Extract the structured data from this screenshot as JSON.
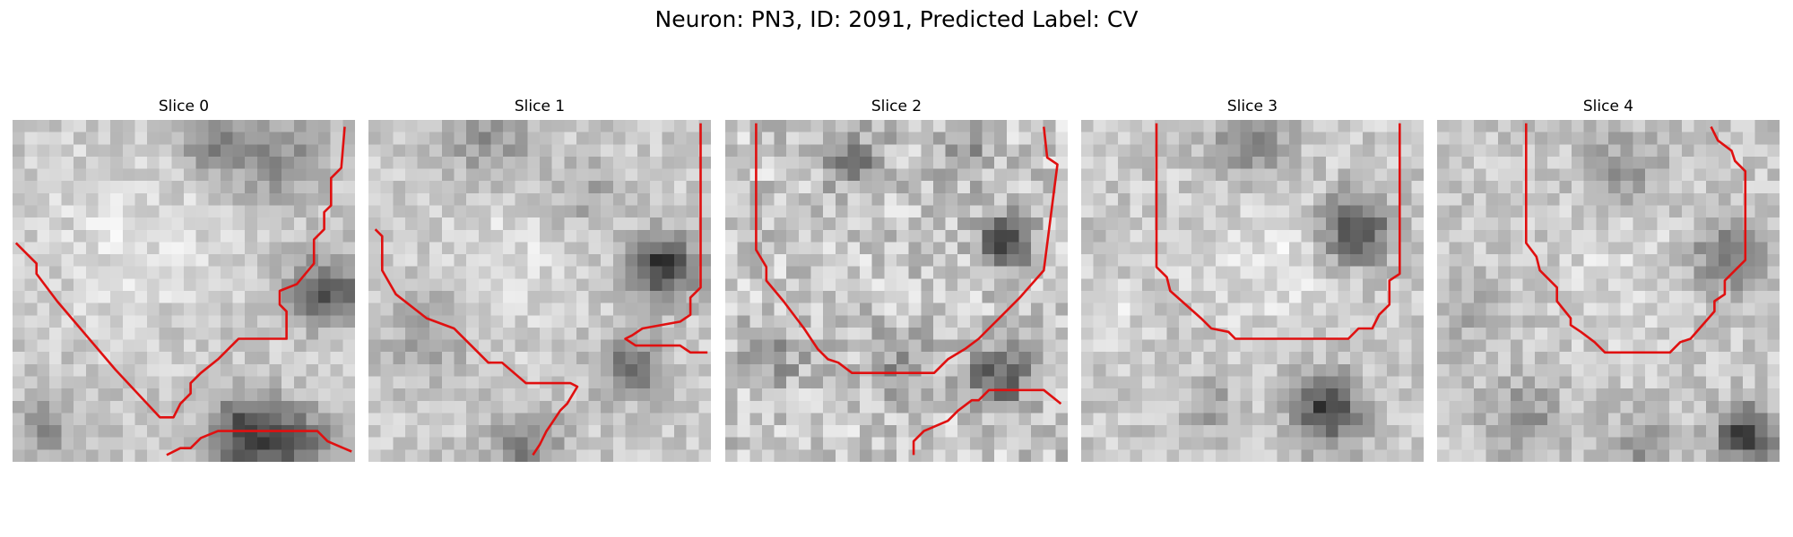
{
  "figure": {
    "title": "Neuron: PN3, ID: 2091, Predicted Label: CV"
  },
  "panels": [
    {
      "title": "Slice 0",
      "seed": 11,
      "noise": 26,
      "stroke_color": "#e01010",
      "field": [
        {
          "u": 0.58,
          "v": 0.07,
          "r": 0.1,
          "a": -70
        },
        {
          "u": 0.78,
          "v": 0.12,
          "r": 0.12,
          "a": -60
        },
        {
          "u": 0.92,
          "v": 0.5,
          "r": 0.1,
          "a": -110
        },
        {
          "u": 0.69,
          "v": 0.92,
          "r": 0.11,
          "a": -140
        },
        {
          "u": 0.85,
          "v": 0.94,
          "r": 0.09,
          "a": -90
        },
        {
          "u": 0.1,
          "v": 0.9,
          "r": 0.1,
          "a": -50
        },
        {
          "u": 0.35,
          "v": 0.35,
          "r": 0.25,
          "a": 25
        }
      ],
      "curves": [
        [
          [
            0.01,
            0.36
          ],
          [
            0.07,
            0.42
          ],
          [
            0.07,
            0.45
          ],
          [
            0.13,
            0.53
          ],
          [
            0.3,
            0.73
          ],
          [
            0.43,
            0.87
          ],
          [
            0.47,
            0.87
          ],
          [
            0.49,
            0.83
          ],
          [
            0.52,
            0.8
          ],
          [
            0.52,
            0.77
          ],
          [
            0.55,
            0.74
          ],
          [
            0.6,
            0.7
          ],
          [
            0.63,
            0.67
          ],
          [
            0.66,
            0.64
          ],
          [
            0.8,
            0.64
          ],
          [
            0.8,
            0.56
          ],
          [
            0.78,
            0.54
          ],
          [
            0.78,
            0.5
          ],
          [
            0.83,
            0.48
          ],
          [
            0.88,
            0.42
          ],
          [
            0.88,
            0.35
          ],
          [
            0.91,
            0.32
          ],
          [
            0.91,
            0.27
          ],
          [
            0.93,
            0.25
          ],
          [
            0.93,
            0.17
          ],
          [
            0.96,
            0.14
          ],
          [
            0.97,
            0.02
          ]
        ],
        [
          [
            0.45,
            0.98
          ],
          [
            0.49,
            0.96
          ],
          [
            0.52,
            0.96
          ],
          [
            0.55,
            0.93
          ],
          [
            0.6,
            0.91
          ],
          [
            0.89,
            0.91
          ],
          [
            0.92,
            0.94
          ],
          [
            0.99,
            0.97
          ]
        ]
      ]
    },
    {
      "title": "Slice 1",
      "seed": 23,
      "noise": 26,
      "stroke_color": "#e01010",
      "field": [
        {
          "u": 0.35,
          "v": 0.06,
          "r": 0.12,
          "a": -55
        },
        {
          "u": 0.62,
          "v": 0.22,
          "r": 0.1,
          "a": -40
        },
        {
          "u": 0.86,
          "v": 0.43,
          "r": 0.09,
          "a": -150
        },
        {
          "u": 0.76,
          "v": 0.72,
          "r": 0.09,
          "a": -90
        },
        {
          "u": 0.46,
          "v": 0.95,
          "r": 0.1,
          "a": -70
        },
        {
          "u": 0.18,
          "v": 0.62,
          "r": 0.12,
          "a": -45
        },
        {
          "u": 0.4,
          "v": 0.4,
          "r": 0.25,
          "a": 20
        }
      ],
      "curves": [
        [
          [
            0.02,
            0.32
          ],
          [
            0.04,
            0.34
          ],
          [
            0.04,
            0.44
          ],
          [
            0.08,
            0.51
          ],
          [
            0.17,
            0.58
          ],
          [
            0.25,
            0.61
          ],
          [
            0.3,
            0.66
          ],
          [
            0.35,
            0.71
          ],
          [
            0.39,
            0.71
          ],
          [
            0.46,
            0.77
          ],
          [
            0.59,
            0.77
          ],
          [
            0.61,
            0.78
          ],
          [
            0.58,
            0.83
          ],
          [
            0.56,
            0.85
          ],
          [
            0.54,
            0.88
          ],
          [
            0.52,
            0.91
          ],
          [
            0.5,
            0.95
          ],
          [
            0.48,
            0.98
          ]
        ],
        [
          [
            0.97,
            0.01
          ],
          [
            0.97,
            0.49
          ],
          [
            0.94,
            0.52
          ],
          [
            0.94,
            0.57
          ],
          [
            0.91,
            0.59
          ],
          [
            0.8,
            0.61
          ],
          [
            0.77,
            0.63
          ],
          [
            0.75,
            0.64
          ],
          [
            0.78,
            0.66
          ],
          [
            0.91,
            0.66
          ],
          [
            0.94,
            0.68
          ],
          [
            0.99,
            0.68
          ]
        ]
      ]
    },
    {
      "title": "Slice 2",
      "seed": 37,
      "noise": 40,
      "stroke_color": "#e01010",
      "field": [
        {
          "u": 0.38,
          "v": 0.12,
          "r": 0.09,
          "a": -70
        },
        {
          "u": 0.7,
          "v": 0.1,
          "r": 0.08,
          "a": -60
        },
        {
          "u": 0.82,
          "v": 0.35,
          "r": 0.08,
          "a": -140
        },
        {
          "u": 0.8,
          "v": 0.75,
          "r": 0.09,
          "a": -110
        },
        {
          "u": 0.5,
          "v": 0.72,
          "r": 0.1,
          "a": -50
        },
        {
          "u": 0.15,
          "v": 0.7,
          "r": 0.1,
          "a": -40
        }
      ],
      "curves": [
        [
          [
            0.09,
            0.01
          ],
          [
            0.09,
            0.38
          ],
          [
            0.12,
            0.43
          ],
          [
            0.12,
            0.47
          ],
          [
            0.17,
            0.53
          ],
          [
            0.23,
            0.61
          ],
          [
            0.27,
            0.67
          ],
          [
            0.3,
            0.7
          ],
          [
            0.33,
            0.71
          ],
          [
            0.37,
            0.74
          ],
          [
            0.61,
            0.74
          ],
          [
            0.65,
            0.7
          ],
          [
            0.7,
            0.67
          ],
          [
            0.74,
            0.64
          ],
          [
            0.77,
            0.61
          ],
          [
            0.8,
            0.58
          ],
          [
            0.86,
            0.52
          ],
          [
            0.93,
            0.44
          ],
          [
            0.97,
            0.13
          ],
          [
            0.94,
            0.11
          ],
          [
            0.93,
            0.02
          ]
        ],
        [
          [
            0.55,
            0.98
          ],
          [
            0.55,
            0.94
          ],
          [
            0.58,
            0.91
          ],
          [
            0.65,
            0.88
          ],
          [
            0.68,
            0.85
          ],
          [
            0.72,
            0.82
          ],
          [
            0.74,
            0.82
          ],
          [
            0.77,
            0.79
          ],
          [
            0.93,
            0.79
          ],
          [
            0.98,
            0.83
          ]
        ]
      ]
    },
    {
      "title": "Slice 3",
      "seed": 51,
      "noise": 28,
      "stroke_color": "#e01010",
      "field": [
        {
          "u": 0.5,
          "v": 0.07,
          "r": 0.12,
          "a": -60
        },
        {
          "u": 0.8,
          "v": 0.32,
          "r": 0.1,
          "a": -130
        },
        {
          "u": 0.72,
          "v": 0.85,
          "r": 0.1,
          "a": -140
        },
        {
          "u": 0.38,
          "v": 0.84,
          "r": 0.08,
          "a": -40
        },
        {
          "u": 0.1,
          "v": 0.55,
          "r": 0.1,
          "a": 20
        },
        {
          "u": 0.55,
          "v": 0.4,
          "r": 0.22,
          "a": 25
        }
      ],
      "curves": [
        [
          [
            0.22,
            0.01
          ],
          [
            0.22,
            0.43
          ],
          [
            0.25,
            0.46
          ],
          [
            0.26,
            0.5
          ],
          [
            0.35,
            0.58
          ],
          [
            0.38,
            0.61
          ],
          [
            0.43,
            0.62
          ],
          [
            0.45,
            0.64
          ],
          [
            0.78,
            0.64
          ],
          [
            0.81,
            0.61
          ],
          [
            0.85,
            0.61
          ],
          [
            0.87,
            0.57
          ],
          [
            0.9,
            0.54
          ],
          [
            0.9,
            0.47
          ],
          [
            0.93,
            0.45
          ],
          [
            0.93,
            0.01
          ]
        ]
      ]
    },
    {
      "title": "Slice 4",
      "seed": 67,
      "noise": 28,
      "stroke_color": "#e01010",
      "field": [
        {
          "u": 0.55,
          "v": 0.15,
          "r": 0.12,
          "a": -50
        },
        {
          "u": 0.85,
          "v": 0.4,
          "r": 0.1,
          "a": -90
        },
        {
          "u": 0.25,
          "v": 0.88,
          "r": 0.12,
          "a": -50
        },
        {
          "u": 0.6,
          "v": 0.95,
          "r": 0.1,
          "a": -50
        },
        {
          "u": 0.9,
          "v": 0.92,
          "r": 0.08,
          "a": -150
        },
        {
          "u": 0.12,
          "v": 0.58,
          "r": 0.1,
          "a": -30
        },
        {
          "u": 0.55,
          "v": 0.45,
          "r": 0.2,
          "a": 20
        }
      ],
      "curves": [
        [
          [
            0.26,
            0.01
          ],
          [
            0.26,
            0.36
          ],
          [
            0.29,
            0.4
          ],
          [
            0.3,
            0.44
          ],
          [
            0.35,
            0.49
          ],
          [
            0.35,
            0.53
          ],
          [
            0.39,
            0.58
          ],
          [
            0.39,
            0.6
          ],
          [
            0.42,
            0.62
          ],
          [
            0.46,
            0.65
          ],
          [
            0.49,
            0.68
          ],
          [
            0.68,
            0.68
          ],
          [
            0.71,
            0.65
          ],
          [
            0.74,
            0.64
          ],
          [
            0.81,
            0.56
          ],
          [
            0.81,
            0.53
          ],
          [
            0.84,
            0.51
          ],
          [
            0.84,
            0.47
          ],
          [
            0.87,
            0.44
          ],
          [
            0.9,
            0.41
          ],
          [
            0.9,
            0.15
          ],
          [
            0.87,
            0.12
          ],
          [
            0.86,
            0.09
          ],
          [
            0.82,
            0.06
          ],
          [
            0.8,
            0.02
          ]
        ]
      ]
    }
  ]
}
